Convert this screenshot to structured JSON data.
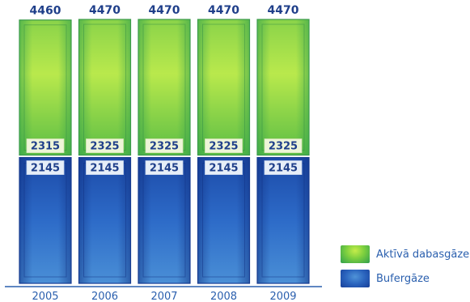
{
  "chart_data": {
    "type": "bar",
    "stacked": true,
    "categories": [
      "2005",
      "2006",
      "2007",
      "2008",
      "2009"
    ],
    "totals": [
      "4460",
      "4470",
      "4470",
      "4470",
      "4470"
    ],
    "series": [
      {
        "name": "Bufergāze",
        "values": [
          2145,
          2145,
          2145,
          2145,
          2145
        ],
        "color": "#2456b8"
      },
      {
        "name": "Aktīvā dabasgāze",
        "values": [
          2315,
          2325,
          2325,
          2325,
          2325
        ],
        "color": "#6cc63f"
      }
    ],
    "ylim": [
      0,
      4470
    ],
    "grid": false,
    "legend_position": "bottom-right"
  },
  "legend": {
    "items": [
      {
        "label": "Aktīvā dabasgāze",
        "color": "#6cc63f"
      },
      {
        "label": "Bufergāze",
        "color": "#2456b8"
      }
    ]
  }
}
